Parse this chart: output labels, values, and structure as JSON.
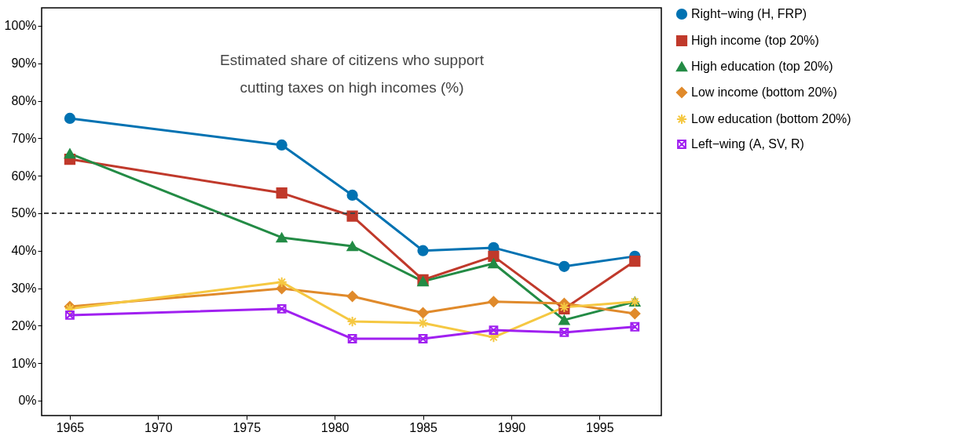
{
  "chart_data": {
    "type": "line",
    "title": "Estimated share of citizens who support\ncutting taxes on high incomes (%)",
    "x": [
      1965,
      1977,
      1981,
      1985,
      1989,
      1993,
      1997
    ],
    "series": [
      {
        "name": "Right−wing (H, FRP)",
        "color": "#0072b2",
        "marker": "circle",
        "values": [
          75.3,
          68.2,
          54.8,
          40.0,
          40.8,
          35.8,
          38.5
        ]
      },
      {
        "name": "High income (top 20%)",
        "color": "#c0392b",
        "marker": "square",
        "values": [
          64.4,
          55.4,
          49.2,
          32.2,
          38.5,
          24.5,
          37.2
        ]
      },
      {
        "name": "High education (top 20%)",
        "color": "#238b45",
        "marker": "triangle",
        "values": [
          65.9,
          43.5,
          41.2,
          31.8,
          36.6,
          21.5,
          26.4
        ]
      },
      {
        "name": "Low income (bottom 20%)",
        "color": "#e08a2b",
        "marker": "diamond",
        "values": [
          25.1,
          29.9,
          27.8,
          23.4,
          26.4,
          25.9,
          23.2
        ]
      },
      {
        "name": "Low education (bottom 20%)",
        "color": "#f5c842",
        "marker": "cross",
        "values": [
          24.5,
          31.6,
          21.1,
          20.7,
          16.9,
          24.9,
          26.4
        ]
      },
      {
        "name": "Left−wing (A, SV, R)",
        "color": "#a020f0",
        "marker": "cross",
        "values": [
          22.8,
          24.5,
          16.5,
          16.5,
          18.8,
          18.2,
          19.7
        ]
      }
    ],
    "xlim": [
      1963.4,
      1998.5
    ],
    "xticks": [
      1965,
      1970,
      1975,
      1980,
      1985,
      1990,
      1995
    ],
    "ylim": [
      -4,
      104.8
    ],
    "yticks": [
      {
        "value": 0,
        "label": "0%"
      },
      {
        "value": 10,
        "label": "10%"
      },
      {
        "value": 20,
        "label": "20%"
      },
      {
        "value": 30,
        "label": "30%"
      },
      {
        "value": 40,
        "label": "40%"
      },
      {
        "value": 50,
        "label": "50%"
      },
      {
        "value": 60,
        "label": "60%"
      },
      {
        "value": 70,
        "label": "70%"
      },
      {
        "value": 80,
        "label": "80%"
      },
      {
        "value": 90,
        "label": "90%"
      },
      {
        "value": 100,
        "label": "100%"
      }
    ],
    "ref_lines": [
      {
        "axis": "y",
        "value": 50,
        "color": "#444444",
        "line_style": "dashed"
      }
    ],
    "grid": false,
    "legend": "right",
    "line_style": "solid"
  }
}
